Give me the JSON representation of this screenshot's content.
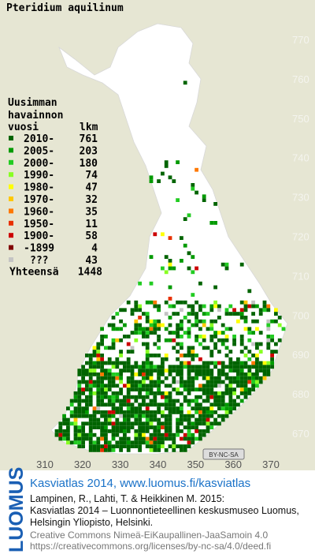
{
  "title": "Pteridium aquilinum",
  "legend": {
    "header": [
      "Uusimman",
      "havainnon"
    ],
    "year_label": "vuosi",
    "count_label": "lkm",
    "entries": [
      {
        "label": "2010-",
        "count": 761,
        "color": "#006400"
      },
      {
        "label": "2005-",
        "count": 203,
        "color": "#009a00"
      },
      {
        "label": "2000-",
        "count": 180,
        "color": "#22cc22"
      },
      {
        "label": "1990-",
        "count": 74,
        "color": "#88ff22"
      },
      {
        "label": "1980-",
        "count": 47,
        "color": "#ffff00"
      },
      {
        "label": "1970-",
        "count": 32,
        "color": "#ffc800"
      },
      {
        "label": "1960-",
        "count": 35,
        "color": "#ff7800"
      },
      {
        "label": "1950-",
        "count": 11,
        "color": "#e83000"
      },
      {
        "label": "1900-",
        "count": 58,
        "color": "#cc0000"
      },
      {
        "label": "-1899",
        "count": 4,
        "color": "#800000"
      },
      {
        "label": "???",
        "count": 43,
        "color": "#c4c4c4"
      }
    ],
    "total_label": "Yhteensä",
    "total": 1448
  },
  "map": {
    "y_ticks": [
      670,
      680,
      690,
      700,
      710,
      720,
      730,
      740,
      750,
      760,
      770
    ],
    "x_ticks": [
      310,
      320,
      330,
      340,
      350,
      360,
      370
    ],
    "license_badge": "BY-NC-SA"
  },
  "footer": {
    "logo": "LUOMUS",
    "link": "Kasviatlas 2014, www.luomus.fi/kasviatlas",
    "citation": [
      "Lampinen, R., Lahti, T. & Heikkinen M. 2015:",
      "Kasviatlas 2014 – Luonnontieteellinen keskusmuseo Luomus,",
      "Helsingin Yliopisto, Helsinki."
    ],
    "license": [
      "Creative Commons Nimeä-EiKaupallinen-JaaSamoin 4.0",
      "https://creativecommons.org/licenses/by-nc-sa/4.0/deed.fi"
    ]
  }
}
